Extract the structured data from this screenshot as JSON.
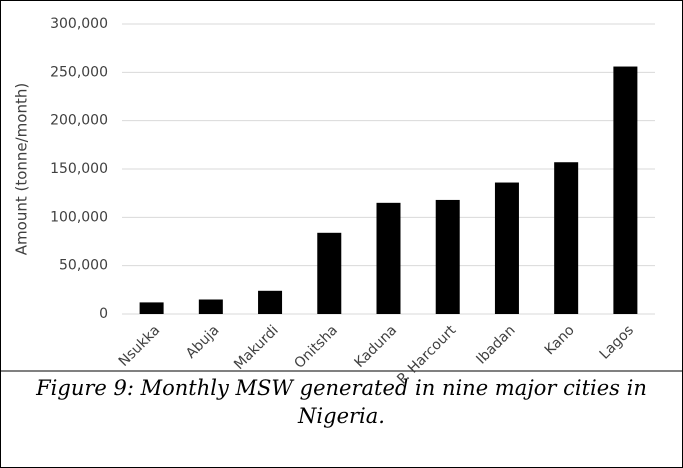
{
  "chart_data": {
    "type": "bar",
    "caption": "Figure 9: Monthly MSW generated in nine major cities in Nigeria.",
    "ylabel": "Amount (tonne/month)",
    "categories": [
      "Nsukka",
      "Abuja",
      "Makurdi",
      "Onitsha",
      "Kaduna",
      "P. Harcourt",
      "Ibadan",
      "Kano",
      "Lagos"
    ],
    "values": [
      12000,
      15000,
      24000,
      84000,
      115000,
      118000,
      136000,
      157000,
      256000
    ],
    "color": "#000000",
    "ylim": [
      0,
      300000
    ],
    "yticks": [
      0,
      {
        "value": 50000,
        "label": "50,000"
      },
      {
        "value": 100000,
        "label": "100,000"
      },
      {
        "value": 150000,
        "label": "150,000"
      },
      {
        "value": 200000,
        "label": "200,000"
      },
      {
        "value": 250000,
        "label": "250,000"
      },
      {
        "value": 300000,
        "label": "300,000"
      }
    ],
    "grid": true
  }
}
